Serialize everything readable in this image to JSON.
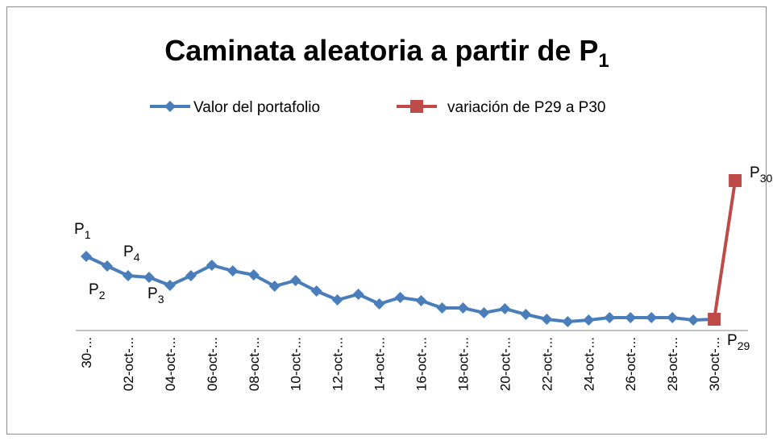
{
  "chart_data": {
    "type": "line",
    "title": {
      "base": "Caminata aleatoria a partir de P",
      "sub": "1"
    },
    "categories": [
      "30-...",
      null,
      "02-oct-...",
      null,
      "04-oct-...",
      null,
      "06-oct-...",
      null,
      "08-oct-...",
      null,
      "10-oct-...",
      null,
      "12-oct-...",
      null,
      "14-oct-...",
      null,
      "16-oct-...",
      null,
      "18-oct-...",
      null,
      "20-oct-...",
      null,
      "22-oct-...",
      null,
      "24-oct-...",
      null,
      "26-oct-...",
      null,
      "28-oct-...",
      null,
      "30-oct-...",
      null
    ],
    "series": [
      {
        "name": "Valor del portafolio",
        "color": "#4a7ebb",
        "marker": "diamond",
        "values": [
          92,
          80,
          68,
          66,
          56,
          68,
          81,
          74,
          69,
          55,
          62,
          49,
          38,
          45,
          33,
          41,
          37,
          28,
          28,
          22,
          27,
          20,
          14,
          11,
          13,
          16,
          16,
          16,
          16,
          13,
          14,
          null
        ]
      },
      {
        "name": "variación de P29 a P30",
        "color": "#be4b48",
        "marker": "square",
        "values": [
          null,
          null,
          null,
          null,
          null,
          null,
          null,
          null,
          null,
          null,
          null,
          null,
          null,
          null,
          null,
          null,
          null,
          null,
          null,
          null,
          null,
          null,
          null,
          null,
          null,
          null,
          null,
          null,
          null,
          null,
          14,
          186
        ]
      }
    ],
    "ylim": [
      0,
      220
    ],
    "annotations": [
      {
        "base": "P",
        "sub": "1"
      },
      {
        "base": "P",
        "sub": "2"
      },
      {
        "base": "P",
        "sub": "3"
      },
      {
        "base": "P",
        "sub": "4"
      },
      {
        "base": "P",
        "sub": "29"
      },
      {
        "base": "P",
        "sub": "30"
      }
    ]
  }
}
